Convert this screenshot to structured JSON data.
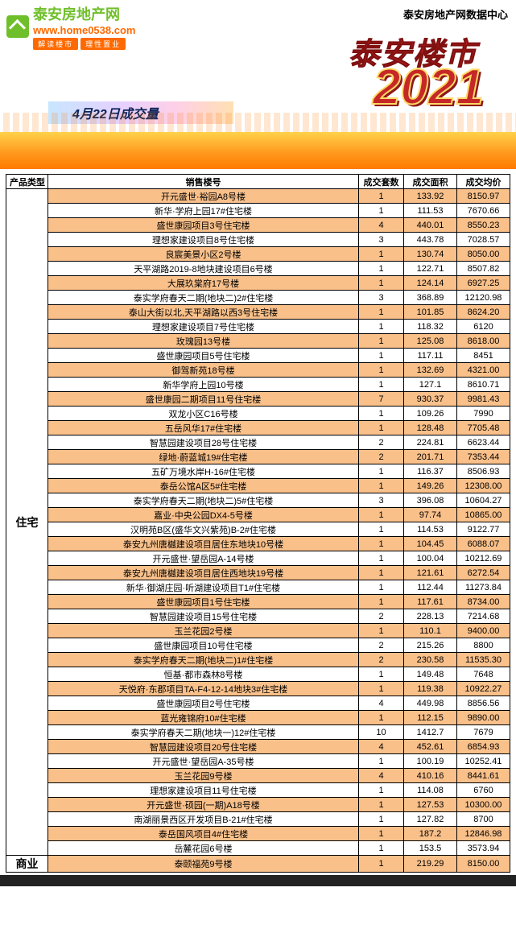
{
  "branding": {
    "site_name_cn": "泰安房地产网",
    "site_url": "www.home0538.com",
    "tagline1": "解读楼市",
    "tagline2": "理性置业",
    "data_center": "泰安房地产网数据中心"
  },
  "title": {
    "main": "泰安楼市",
    "year": "2021",
    "date_label": "4月22日成交量"
  },
  "columns": {
    "category": "产品类型",
    "name": "销售楼号",
    "qty": "成交套数",
    "area": "成交面积",
    "price": "成交均价"
  },
  "colors": {
    "row_alt": "#f9c08a",
    "header_red": "#b71c1c",
    "year_red": "#c62828",
    "orange": "#ff7a00",
    "green": "#6fbf2a"
  },
  "categories": [
    {
      "label": "住宅",
      "rowspan": 46
    },
    {
      "label": "商业",
      "rowspan": 1
    }
  ],
  "rows": [
    [
      "开元盛世·裕园A8号楼",
      "1",
      "133.92",
      "8150.97"
    ],
    [
      "新华·学府上园17#住宅楼",
      "1",
      "111.53",
      "7670.66"
    ],
    [
      "盛世康园项目3号住宅楼",
      "4",
      "440.01",
      "8550.23"
    ],
    [
      "理想家建设项目8号住宅楼",
      "3",
      "443.78",
      "7028.57"
    ],
    [
      "良宸美景小区2号楼",
      "1",
      "130.74",
      "8050.00"
    ],
    [
      "天平湖路2019-8地块建设项目6号楼",
      "1",
      "122.71",
      "8507.82"
    ],
    [
      "大展玖棠府17号楼",
      "1",
      "124.14",
      "6927.25"
    ],
    [
      "泰实学府春天二期(地块二)2#住宅楼",
      "3",
      "368.89",
      "12120.98"
    ],
    [
      "泰山大街以北,天平湖路以西3号住宅楼",
      "1",
      "101.85",
      "8624.20"
    ],
    [
      "理想家建设项目7号住宅楼",
      "1",
      "118.32",
      "6120"
    ],
    [
      "玫瑰园13号楼",
      "1",
      "125.08",
      "8618.00"
    ],
    [
      "盛世康园项目5号住宅楼",
      "1",
      "117.11",
      "8451"
    ],
    [
      "御驾新苑18号楼",
      "1",
      "132.69",
      "4321.00"
    ],
    [
      "新华学府上园10号楼",
      "1",
      "127.1",
      "8610.71"
    ],
    [
      "盛世康园二期项目11号住宅楼",
      "7",
      "930.37",
      "9981.43"
    ],
    [
      "双龙小区C16号楼",
      "1",
      "109.26",
      "7990"
    ],
    [
      "五岳风华17#住宅楼",
      "1",
      "128.48",
      "7705.48"
    ],
    [
      "智慧园建设项目28号住宅楼",
      "2",
      "224.81",
      "6623.44"
    ],
    [
      "绿地·蔚蓝城19#住宅楼",
      "2",
      "201.71",
      "7353.44"
    ],
    [
      "五矿万境水岸H-16#住宅楼",
      "1",
      "116.37",
      "8506.93"
    ],
    [
      "泰岳公馆A区5#住宅楼",
      "1",
      "149.26",
      "12308.00"
    ],
    [
      "泰实学府春天二期(地块二)5#住宅楼",
      "3",
      "396.08",
      "10604.27"
    ],
    [
      "嘉业·中央公园DX4-5号楼",
      "1",
      "97.74",
      "10865.00"
    ],
    [
      "汉明苑B区(盛华文兴紫苑)B-2#住宅楼",
      "1",
      "114.53",
      "9122.77"
    ],
    [
      "泰安九州唐樾建设项目居住东地块10号楼",
      "1",
      "104.45",
      "6088.07"
    ],
    [
      "开元盛世·望岳园A-14号楼",
      "1",
      "100.04",
      "10212.69"
    ],
    [
      "泰安九州唐樾建设项目居住西地块19号楼",
      "1",
      "121.61",
      "6272.54"
    ],
    [
      "新华·御湖庄园·听湖建设项目T1#住宅楼",
      "1",
      "112.44",
      "11273.84"
    ],
    [
      "盛世康园项目1号住宅楼",
      "1",
      "117.61",
      "8734.00"
    ],
    [
      "智慧园建设项目15号住宅楼",
      "2",
      "228.13",
      "7214.68"
    ],
    [
      "玉兰花园2号楼",
      "1",
      "110.1",
      "9400.00"
    ],
    [
      "盛世康园项目10号住宅楼",
      "2",
      "215.26",
      "8800"
    ],
    [
      "泰实学府春天二期(地块二)1#住宅楼",
      "2",
      "230.58",
      "11535.30"
    ],
    [
      "恒基·都市森林8号楼",
      "1",
      "149.48",
      "7648"
    ],
    [
      "天悦府·东郡项目TA-F4-12-14地块3#住宅楼",
      "1",
      "119.38",
      "10922.27"
    ],
    [
      "盛世康园项目2号住宅楼",
      "4",
      "449.98",
      "8856.56"
    ],
    [
      "蓝光雍锦府10#住宅楼",
      "1",
      "112.15",
      "9890.00"
    ],
    [
      "泰实学府春天二期(地块一)12#住宅楼",
      "10",
      "1412.7",
      "7679"
    ],
    [
      "智慧园建设项目20号住宅楼",
      "4",
      "452.61",
      "6854.93"
    ],
    [
      "开元盛世·望岳园A-35号楼",
      "1",
      "100.19",
      "10252.41"
    ],
    [
      "玉兰花园9号楼",
      "4",
      "410.16",
      "8441.61"
    ],
    [
      "理想家建设项目11号住宅楼",
      "1",
      "114.08",
      "6760"
    ],
    [
      "开元盛世·硕园(一期)A18号楼",
      "1",
      "127.53",
      "10300.00"
    ],
    [
      "南湖丽景西区开发项目B-21#住宅楼",
      "1",
      "127.82",
      "8700"
    ],
    [
      "泰岳国风项目4#住宅楼",
      "1",
      "187.2",
      "12846.98"
    ],
    [
      "岳麓花园6号楼",
      "1",
      "153.5",
      "3573.94"
    ],
    [
      "泰颐福苑9号楼",
      "1",
      "219.29",
      "8150.00"
    ]
  ]
}
